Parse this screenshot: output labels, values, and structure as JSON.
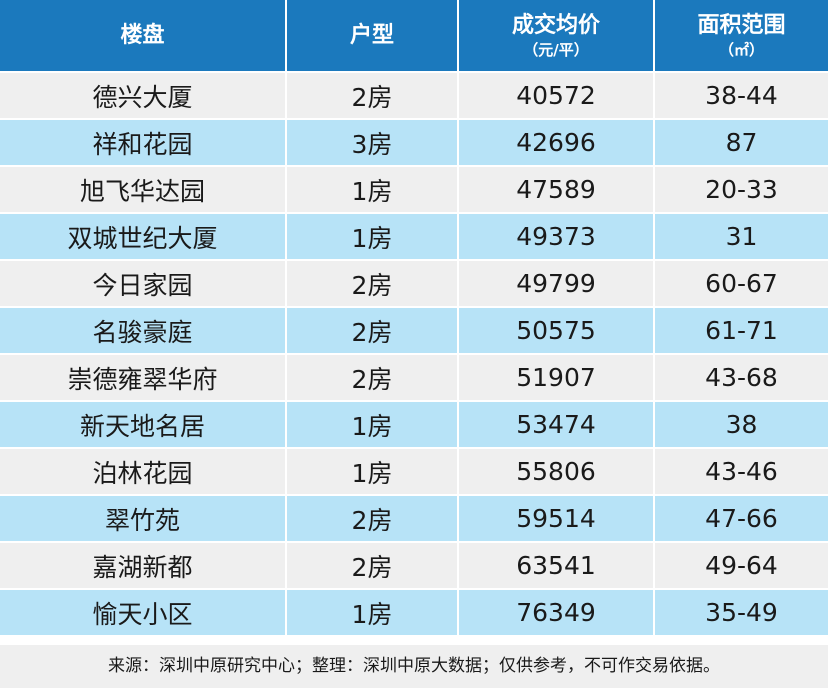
{
  "table": {
    "headers": [
      {
        "main": "楼盘",
        "sub": ""
      },
      {
        "main": "户型",
        "sub": ""
      },
      {
        "main": "成交均价",
        "sub": "（元/平）"
      },
      {
        "main": "面积范围",
        "sub": "（㎡）"
      }
    ],
    "rows": [
      [
        "德兴大厦",
        "2房",
        "40572",
        "38-44"
      ],
      [
        "祥和花园",
        "3房",
        "42696",
        "87"
      ],
      [
        "旭飞华达园",
        "1房",
        "47589",
        "20-33"
      ],
      [
        "双城世纪大厦",
        "1房",
        "49373",
        "31"
      ],
      [
        "今日家园",
        "2房",
        "49799",
        "60-67"
      ],
      [
        "名骏豪庭",
        "2房",
        "50575",
        "61-71"
      ],
      [
        "崇德雍翠华府",
        "2房",
        "51907",
        "43-68"
      ],
      [
        "新天地名居",
        "1房",
        "53474",
        "38"
      ],
      [
        "泊林花园",
        "1房",
        "55806",
        "43-46"
      ],
      [
        "翠竹苑",
        "2房",
        "59514",
        "47-66"
      ],
      [
        "嘉湖新都",
        "2房",
        "63541",
        "49-64"
      ],
      [
        "愉天小区",
        "1房",
        "76349",
        "35-49"
      ]
    ]
  },
  "footnote": "来源：深圳中原研究中心；整理：深圳中原大数据；仅供参考，不可作交易依据。",
  "colors": {
    "header_bg": "#1b79bd",
    "row_odd_bg": "#efefef",
    "row_even_bg": "#b7e3f7"
  }
}
